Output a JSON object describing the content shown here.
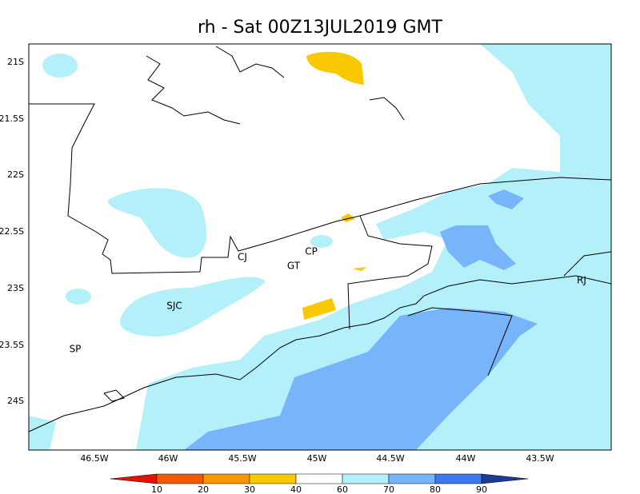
{
  "title": "rh - Sat 00Z13JUL2019 GMT",
  "lat_labels": [
    "21S",
    "21.5S",
    "22S",
    "22.5S",
    "23S",
    "23.5S",
    "24S"
  ],
  "lon_labels": [
    "46.5W",
    "46W",
    "45.5W",
    "45W",
    "44.5W",
    "44W",
    "43.5W"
  ],
  "cities": [
    {
      "label": "CJ"
    },
    {
      "label": "CP"
    },
    {
      "label": "GT"
    },
    {
      "label": "SJC"
    },
    {
      "label": "SP"
    },
    {
      "label": "RJ"
    }
  ],
  "colorbar": {
    "levels": [
      10,
      20,
      30,
      40,
      60,
      70,
      80,
      90
    ],
    "colors": [
      "#e11400",
      "#f05a00",
      "#fa9600",
      "#fac800",
      "#ffffff",
      "#b4f0fa",
      "#78b4fa",
      "#3c78f0",
      "#1e3c96"
    ]
  }
}
